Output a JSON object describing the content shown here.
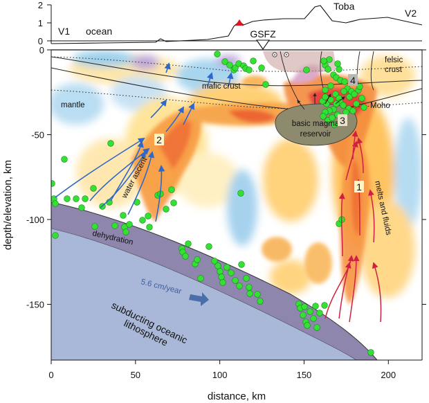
{
  "topo_panel": {
    "yticks": [
      "2",
      "1",
      "0"
    ],
    "labels": {
      "v1": "V1",
      "v2": "V2",
      "ocean": "ocean",
      "toba": "Toba"
    }
  },
  "axes": {
    "xlabel": "distance, km",
    "ylabel": "depth/elevation, km",
    "xticks": [
      "0",
      "50",
      "100",
      "150",
      "200"
    ],
    "yticks": [
      "0",
      "-50",
      "-100",
      "-150"
    ]
  },
  "annotations": {
    "gsfz": "GSFZ",
    "felsic_crust_1": "felsic",
    "felsic_crust_2": "crust",
    "mafic_crust": "mafic crust",
    "mantle": "mantle",
    "moho": "Moho",
    "reservoir_1": "basic magma",
    "reservoir_2": "reservoir",
    "water_ascent": "water ascent",
    "melts": "melts and fluids",
    "dehydration": "dehydration",
    "rate": "5.6 cm/year",
    "slab_1": "subducting oceanic",
    "slab_2": "lithosphere",
    "num_1": "1",
    "num_2": "2",
    "num_3": "3",
    "num_4": "4"
  },
  "colors": {
    "slab": "#8e86ad",
    "lithosphere": "#a9b8d8",
    "reservoir": "#8e8a6e",
    "green_dots": "#33e033",
    "blue_arrows": "#2e68c8",
    "red_arrows": "#d02040",
    "volcano": "#e0141e"
  }
}
